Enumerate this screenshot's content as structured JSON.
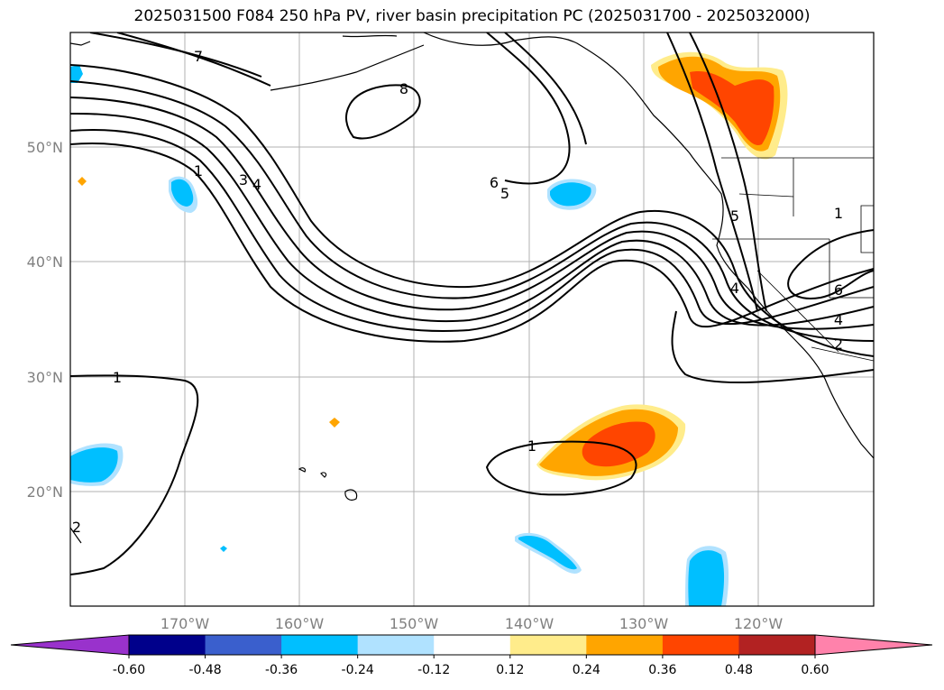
{
  "title": "2025031500 F084 250 hPa PV, river basin precipitation PC (2025031700 - 2025032000)",
  "map": {
    "lon_range": [
      -180,
      -110
    ],
    "lat_range": [
      10,
      60
    ],
    "grid": true,
    "lat_labels": [
      "20°N",
      "30°N",
      "40°N",
      "50°N"
    ],
    "lon_labels": [
      "170°W",
      "160°W",
      "150°W",
      "140°W",
      "130°W",
      "120°W"
    ],
    "pv_contour_labels": [
      "1",
      "2",
      "3",
      "4",
      "5",
      "6",
      "7",
      "8",
      "1",
      "4",
      "5",
      "6",
      "1",
      "2",
      "4",
      "6",
      "1",
      "1"
    ],
    "features": {
      "negative_anomalies": [
        "western-north-pacific-49n",
        "gulf-of-alaska-46n",
        "west-pacific-22n",
        "east-pacific-16n",
        "east-pacific-14n"
      ],
      "positive_anomalies": [
        "british-columbia-55n",
        "subtropical-pacific-24n"
      ]
    }
  },
  "colorbar": {
    "orientation": "horizontal",
    "extend": "both",
    "ticks": [
      "-0.60",
      "-0.48",
      "-0.36",
      "-0.24",
      "-0.12",
      "0.12",
      "0.24",
      "0.36",
      "0.48",
      "0.60"
    ],
    "colors": [
      "#9932cc",
      "#00008b",
      "#3a5fcd",
      "#00bfff",
      "#b0e2ff",
      "#ffffff",
      "#ffec8b",
      "#ffa500",
      "#ff4500",
      "#b22222",
      "#ff82ab"
    ]
  }
}
